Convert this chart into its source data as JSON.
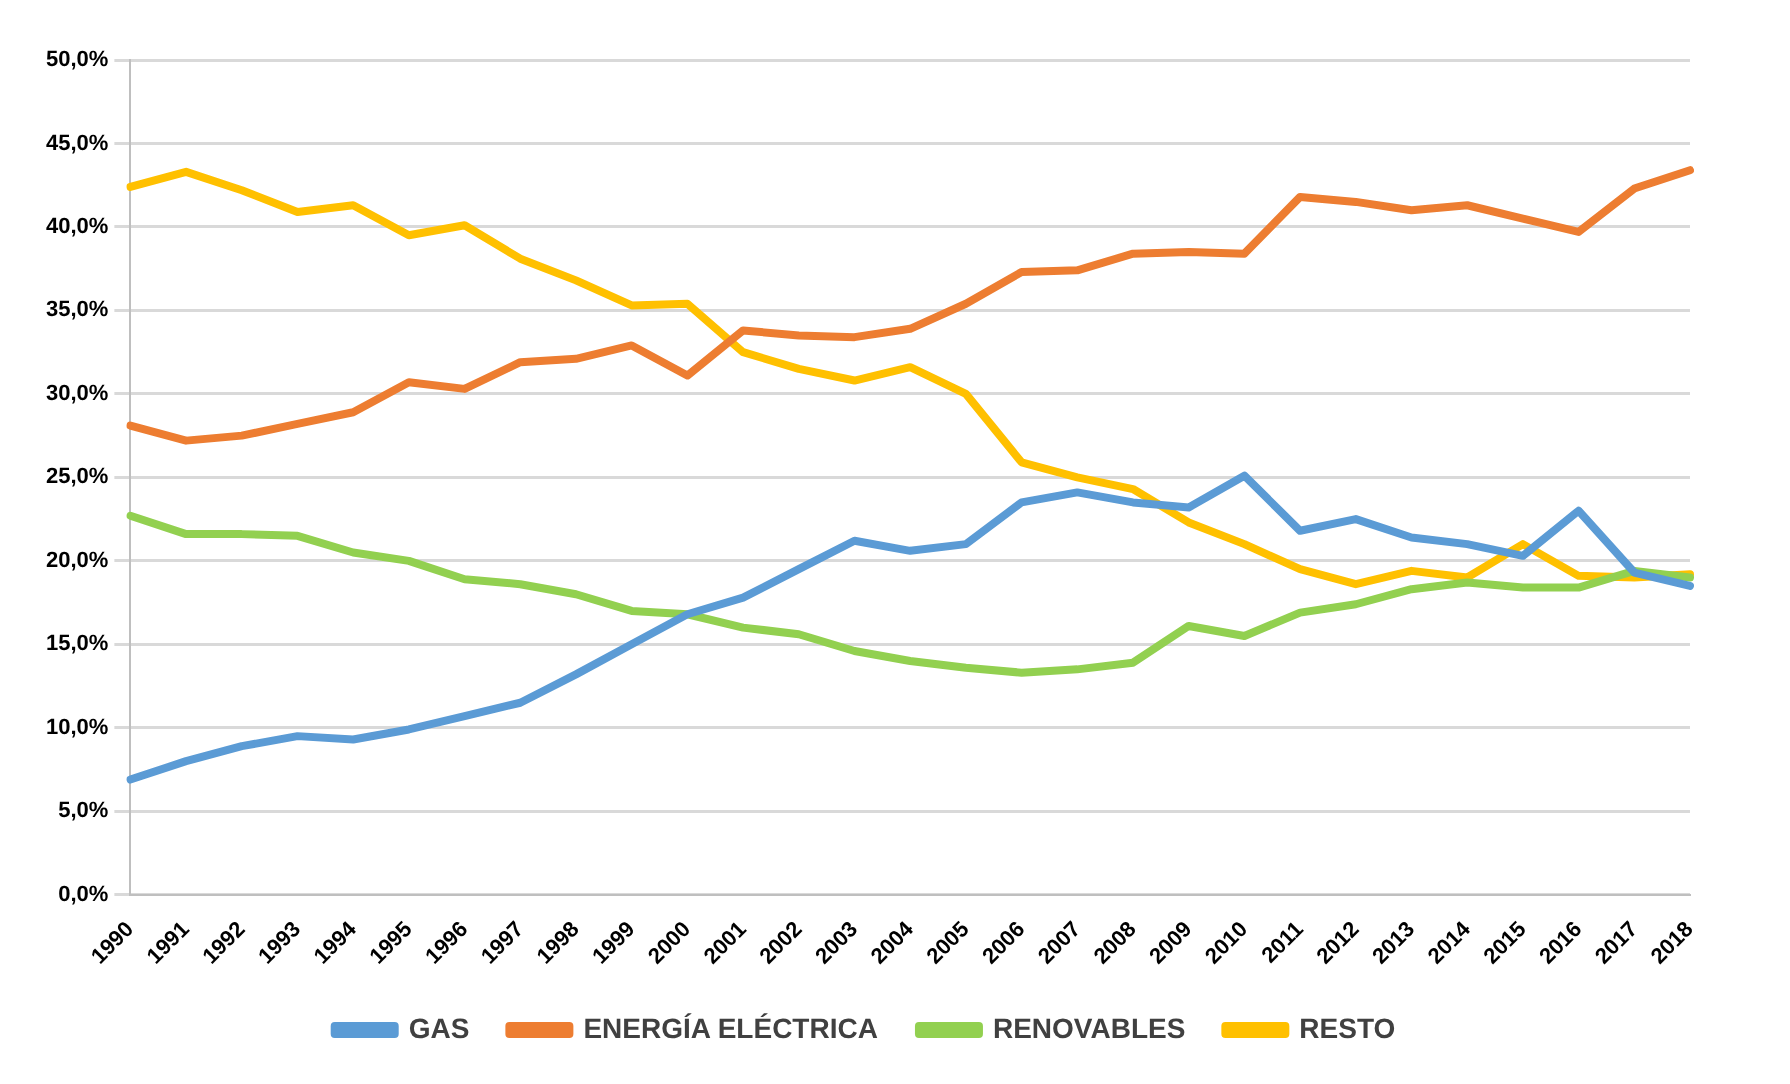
{
  "chart_data": {
    "type": "line",
    "categories": [
      "1990",
      "1991",
      "1992",
      "1993",
      "1994",
      "1995",
      "1996",
      "1997",
      "1998",
      "1999",
      "2000",
      "2001",
      "2002",
      "2003",
      "2004",
      "2005",
      "2006",
      "2007",
      "2008",
      "2009",
      "2010",
      "2011",
      "2012",
      "2013",
      "2014",
      "2015",
      "2016",
      "2017",
      "2018"
    ],
    "series": [
      {
        "name": "GAS",
        "color": "#5b9bd5",
        "values": [
          6.9,
          8.0,
          8.9,
          9.5,
          9.3,
          9.9,
          10.7,
          11.5,
          13.2,
          15.0,
          16.8,
          17.8,
          19.5,
          21.2,
          20.6,
          21.0,
          23.5,
          24.1,
          23.5,
          23.2,
          25.1,
          21.8,
          22.5,
          21.4,
          21.0,
          20.3,
          23.0,
          19.3,
          18.5
        ]
      },
      {
        "name": "ENERGÍA ELÉCTRICA",
        "color": "#ed7d31",
        "values": [
          28.1,
          27.2,
          27.5,
          28.2,
          28.9,
          30.7,
          30.3,
          31.9,
          32.1,
          32.9,
          31.1,
          33.8,
          33.5,
          33.4,
          33.9,
          35.4,
          37.3,
          37.4,
          38.4,
          38.5,
          38.4,
          41.8,
          41.5,
          41.0,
          41.3,
          40.5,
          39.7,
          42.3,
          43.4
        ]
      },
      {
        "name": "RENOVABLES",
        "color": "#92d050",
        "values": [
          22.7,
          21.6,
          21.6,
          21.5,
          20.5,
          20.0,
          18.9,
          18.6,
          18.0,
          17.0,
          16.8,
          16.0,
          15.6,
          14.6,
          14.0,
          13.6,
          13.3,
          13.5,
          13.9,
          16.1,
          15.5,
          16.9,
          17.4,
          18.3,
          18.7,
          18.4,
          18.4,
          19.4,
          19.0
        ]
      },
      {
        "name": "RESTO",
        "color": "#ffc000",
        "values": [
          42.4,
          43.3,
          42.2,
          40.9,
          41.3,
          39.5,
          40.1,
          38.1,
          36.8,
          35.3,
          35.4,
          32.5,
          31.5,
          30.8,
          31.6,
          30.0,
          25.9,
          25.0,
          24.3,
          22.3,
          21.0,
          19.5,
          18.6,
          19.4,
          19.0,
          21.0,
          19.1,
          19.0,
          19.2
        ]
      }
    ],
    "ylim": [
      0,
      50
    ],
    "yticks": [
      {
        "value": 0,
        "label": "0,0%"
      },
      {
        "value": 5,
        "label": "5,0%"
      },
      {
        "value": 10,
        "label": "10,0%"
      },
      {
        "value": 15,
        "label": "15,0%"
      },
      {
        "value": 20,
        "label": "20,0%"
      },
      {
        "value": 25,
        "label": "25,0%"
      },
      {
        "value": 30,
        "label": "30,0%"
      },
      {
        "value": 35,
        "label": "35,0%"
      },
      {
        "value": 40,
        "label": "40,0%"
      },
      {
        "value": 45,
        "label": "45,0%"
      },
      {
        "value": 50,
        "label": "50,0%"
      }
    ],
    "grid": "y",
    "legend": "bottom",
    "marker": "none",
    "line_style": "solid"
  }
}
